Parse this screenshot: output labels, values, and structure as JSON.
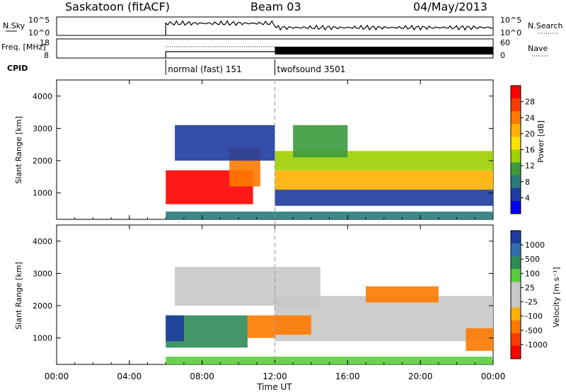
{
  "header": {
    "station": "Saskatoon (fitACF)",
    "beam": "Beam 03",
    "date": "04/May/2013"
  },
  "chart_data": [
    {
      "type": "line",
      "panel": "noise",
      "left_label": "N.Sky",
      "right_label": "N.Search",
      "left_ticks": [
        "10^5",
        "10^0"
      ],
      "right_ticks": [
        "10^5",
        "10^0"
      ],
      "x_start_hour": 6.0,
      "x_end_hour": 24.0
    },
    {
      "type": "line",
      "panel": "frequency",
      "left_label": "Freq. [MHz]",
      "right_label": "Nave",
      "left_ticks": [
        "18",
        "8"
      ],
      "right_ticks": [
        "60",
        "0"
      ],
      "mode_change_hour": 12.0
    },
    {
      "type": "table",
      "panel": "cpid",
      "label": "CPID",
      "segments": [
        {
          "start_hour": 6.0,
          "name": "normal (fast) 151"
        },
        {
          "start_hour": 12.0,
          "name": "twofsound 3501"
        }
      ]
    },
    {
      "type": "heatmap",
      "panel": "power",
      "ylabel": "Slant Range [km]",
      "yticks": [
        1000,
        2000,
        3000,
        4000
      ],
      "ylim": [
        180,
        4500
      ],
      "xlim": [
        0,
        24
      ],
      "colorbar": {
        "label": "Power [dB]",
        "ticks": [
          "28",
          "24",
          "20",
          "16",
          "12",
          "8",
          "4"
        ],
        "colors": [
          "#ff0000",
          "#ff3a00",
          "#ff7a00",
          "#ffb000",
          "#ffe000",
          "#9fd000",
          "#3c9a3c",
          "#2a7a7a",
          "#1e3ca0",
          "#0000ff"
        ]
      },
      "regions": [
        {
          "x0": 6.0,
          "x1": 10.8,
          "y0": 650,
          "y1": 1700,
          "color_index": 0
        },
        {
          "x0": 9.5,
          "x1": 11.2,
          "y0": 1200,
          "y1": 2400,
          "color_index": 2
        },
        {
          "x0": 12.0,
          "x1": 24.0,
          "y0": 1100,
          "y1": 1700,
          "color_index": 3
        },
        {
          "x0": 12.0,
          "x1": 24.0,
          "y0": 1700,
          "y1": 2300,
          "color_index": 5
        },
        {
          "x0": 12.0,
          "x1": 24.0,
          "y0": 600,
          "y1": 1100,
          "color_index": 8
        },
        {
          "x0": 13.0,
          "x1": 16.0,
          "y0": 2100,
          "y1": 3100,
          "color_index": 6
        },
        {
          "x0": 6.5,
          "x1": 12.0,
          "y0": 2000,
          "y1": 3100,
          "color_index": 8
        },
        {
          "x0": 6.0,
          "x1": 24.0,
          "y0": 180,
          "y1": 420,
          "color_index": 7
        }
      ]
    },
    {
      "type": "heatmap",
      "panel": "velocity",
      "ylabel": "Slant Range [km]",
      "yticks": [
        1000,
        2000,
        3000,
        4000
      ],
      "ylim": [
        180,
        4500
      ],
      "xlim": [
        0,
        24
      ],
      "xticks": [
        "00:00",
        "04:00",
        "08:00",
        "12:00",
        "16:00",
        "20:00",
        "00:00"
      ],
      "xlabel": "Time UT",
      "colorbar": {
        "label": "Velocity [m s⁻¹]",
        "ticks": [
          "1000",
          "500",
          "100",
          "25",
          "-25",
          "-100",
          "-500",
          "-1000"
        ],
        "colors": [
          "#1e3ca0",
          "#2f6fb0",
          "#2e8b57",
          "#5acd3a",
          "#c8c8c8",
          "#c8c8c8",
          "#ffb000",
          "#ff7a00",
          "#ff3a00",
          "#ff0000"
        ]
      },
      "regions": [
        {
          "x0": 6.0,
          "x1": 10.5,
          "y0": 700,
          "y1": 1700,
          "color_index": 2
        },
        {
          "x0": 6.0,
          "x1": 7.0,
          "y0": 900,
          "y1": 1700,
          "color_index": 0
        },
        {
          "x0": 10.5,
          "x1": 12.0,
          "y0": 1000,
          "y1": 1700,
          "color_index": 7
        },
        {
          "x0": 12.0,
          "x1": 24.0,
          "y0": 900,
          "y1": 2300,
          "color_index": 4
        },
        {
          "x0": 12.0,
          "x1": 14.0,
          "y0": 1100,
          "y1": 1700,
          "color_index": 7
        },
        {
          "x0": 17.0,
          "x1": 21.0,
          "y0": 2100,
          "y1": 2600,
          "color_index": 7
        },
        {
          "x0": 22.5,
          "x1": 24.0,
          "y0": 600,
          "y1": 1300,
          "color_index": 7
        },
        {
          "x0": 6.5,
          "x1": 14.5,
          "y0": 2000,
          "y1": 3200,
          "color_index": 4
        },
        {
          "x0": 6.0,
          "x1": 24.0,
          "y0": 180,
          "y1": 420,
          "color_index": 3
        }
      ]
    }
  ]
}
